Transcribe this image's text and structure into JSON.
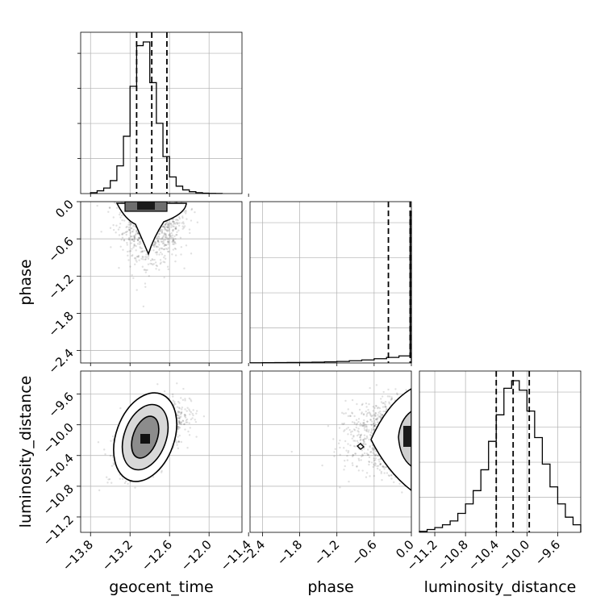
{
  "chart_data": {
    "type": "corner",
    "parameters": [
      "geocent_time",
      "phase",
      "luminosity_distance"
    ],
    "grid": true,
    "panels": [
      {
        "name": "hist-geocent_time",
        "type": "histogram",
        "bin_edges": [
          -13.8,
          -13.7,
          -13.6,
          -13.5,
          -13.4,
          -13.3,
          -13.2,
          -13.1,
          -13.0,
          -12.9,
          -12.8,
          -12.7,
          -12.6,
          -12.5,
          -12.4,
          -12.3,
          -12.2,
          -12.1,
          -12.0,
          -11.9,
          -11.8
        ],
        "counts": [
          0.5,
          1.5,
          3,
          7,
          15,
          31,
          58,
          80,
          82,
          60,
          38,
          20,
          9,
          4,
          2,
          1,
          0.5,
          0.2,
          0.1,
          0.05
        ],
        "quantiles": [
          -13.1,
          -12.87,
          -12.64
        ],
        "xlim": [
          -13.95,
          -11.5
        ]
      },
      {
        "name": "hist-phase",
        "type": "histogram",
        "bin_edges": [
          -2.6,
          -2.4,
          -2.2,
          -2.0,
          -1.8,
          -1.6,
          -1.4,
          -1.2,
          -1.0,
          -0.8,
          -0.6,
          -0.4,
          -0.2,
          -0.02,
          0.0
        ],
        "counts": [
          0.2,
          0.3,
          0.4,
          0.5,
          0.6,
          0.8,
          1.1,
          1.5,
          2.2,
          3,
          4.2,
          5.5,
          7,
          150
        ],
        "quantiles": [
          -0.37,
          -0.02
        ],
        "xlim": [
          -2.6,
          0.0
        ]
      },
      {
        "name": "hist-luminosity_distance",
        "type": "histogram",
        "bin_edges": [
          -11.4,
          -11.3,
          -11.2,
          -11.1,
          -11.0,
          -10.9,
          -10.8,
          -10.7,
          -10.6,
          -10.5,
          -10.4,
          -10.3,
          -10.2,
          -10.1,
          -10.0,
          -9.9,
          -9.8,
          -9.7,
          -9.6,
          -9.5,
          -9.4,
          -9.3
        ],
        "counts": [
          0.5,
          1.5,
          2.5,
          4,
          6,
          10,
          15,
          22,
          33,
          48,
          62,
          76,
          80,
          75,
          64,
          50,
          36,
          24,
          15,
          8,
          4
        ],
        "quantiles": [
          -10.4,
          -10.18,
          -9.97
        ],
        "xlim": [
          -11.4,
          -9.3
        ]
      },
      {
        "name": "density-geocent_time-phase",
        "type": "density",
        "x": "geocent_time",
        "y": "phase",
        "xlim": [
          -13.95,
          -11.5
        ],
        "ylim": [
          -2.6,
          0.0
        ]
      },
      {
        "name": "density-geocent_time-luminosity_distance",
        "type": "density",
        "x": "geocent_time",
        "y": "luminosity_distance",
        "xlim": [
          -13.95,
          -11.5
        ],
        "ylim": [
          -11.4,
          -9.3
        ]
      },
      {
        "name": "density-phase-luminosity_distance",
        "type": "density",
        "x": "phase",
        "y": "luminosity_distance",
        "xlim": [
          -2.6,
          0.0
        ],
        "ylim": [
          -11.4,
          -9.3
        ]
      }
    ],
    "ticks": {
      "geocent_time": [
        "−13.8",
        "−13.2",
        "−12.6",
        "−12.0",
        "−11.4"
      ],
      "phase": [
        "−2.4",
        "−1.8",
        "−1.2",
        "−0.6",
        "0.0"
      ],
      "luminosity_distance": [
        "−11.2",
        "−10.8",
        "−10.4",
        "−10.0",
        "−9.6"
      ]
    },
    "axis_labels": {
      "x": [
        "geocent_time",
        "phase",
        "luminosity_distance"
      ],
      "y": [
        "phase",
        "luminosity_distance"
      ]
    }
  }
}
